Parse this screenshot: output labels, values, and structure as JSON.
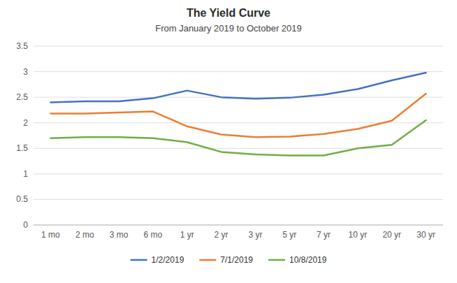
{
  "chart_data": {
    "type": "line",
    "title": "The Yield Curve",
    "subtitle": "From January 2019 to October 2019",
    "categories": [
      "1 mo",
      "2 mo",
      "3 mo",
      "6 mo",
      "1 yr",
      "2 yr",
      "3 yr",
      "5 yr",
      "7 yr",
      "10 yr",
      "20 yr",
      "30 yr"
    ],
    "series": [
      {
        "name": "1/2/2019",
        "color": "#4472C4",
        "values": [
          2.4,
          2.42,
          2.42,
          2.48,
          2.63,
          2.5,
          2.47,
          2.49,
          2.55,
          2.66,
          2.83,
          2.98
        ]
      },
      {
        "name": "7/1/2019",
        "color": "#ED7D31",
        "values": [
          2.18,
          2.18,
          2.2,
          2.22,
          1.93,
          1.77,
          1.72,
          1.73,
          1.78,
          1.88,
          2.04,
          2.57
        ]
      },
      {
        "name": "10/8/2019",
        "color": "#70AD47",
        "values": [
          1.7,
          1.72,
          1.72,
          1.7,
          1.62,
          1.43,
          1.38,
          1.36,
          1.36,
          1.5,
          1.57,
          2.05
        ]
      }
    ],
    "ylim": [
      0,
      3.5
    ],
    "yticks": [
      0,
      0.5,
      1,
      1.5,
      2,
      2.5,
      3,
      3.5
    ],
    "grid": true,
    "legend": "bottom"
  }
}
